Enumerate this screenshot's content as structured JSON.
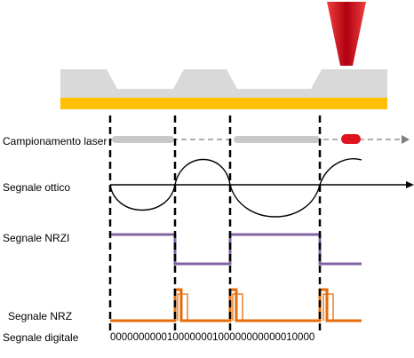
{
  "labels": {
    "campionamento": "Campionamento laser",
    "ottico": "Segnale ottico",
    "nrzi": "Segnale NRZI",
    "nrz": "Segnale  NRZ",
    "digitale": "Segnale digitale"
  },
  "bitstring": "000000000010000000100000000000010000",
  "colors": {
    "disc_surface": "#d9d9d9",
    "disc_layer": "#ffc000",
    "laser": "#e0141e",
    "nrzi_trace": "#8064a2",
    "nrz_trace": "#e46c0a",
    "sampling_bar": "#c8c8c8",
    "sampling_arrow": "#808080"
  }
}
